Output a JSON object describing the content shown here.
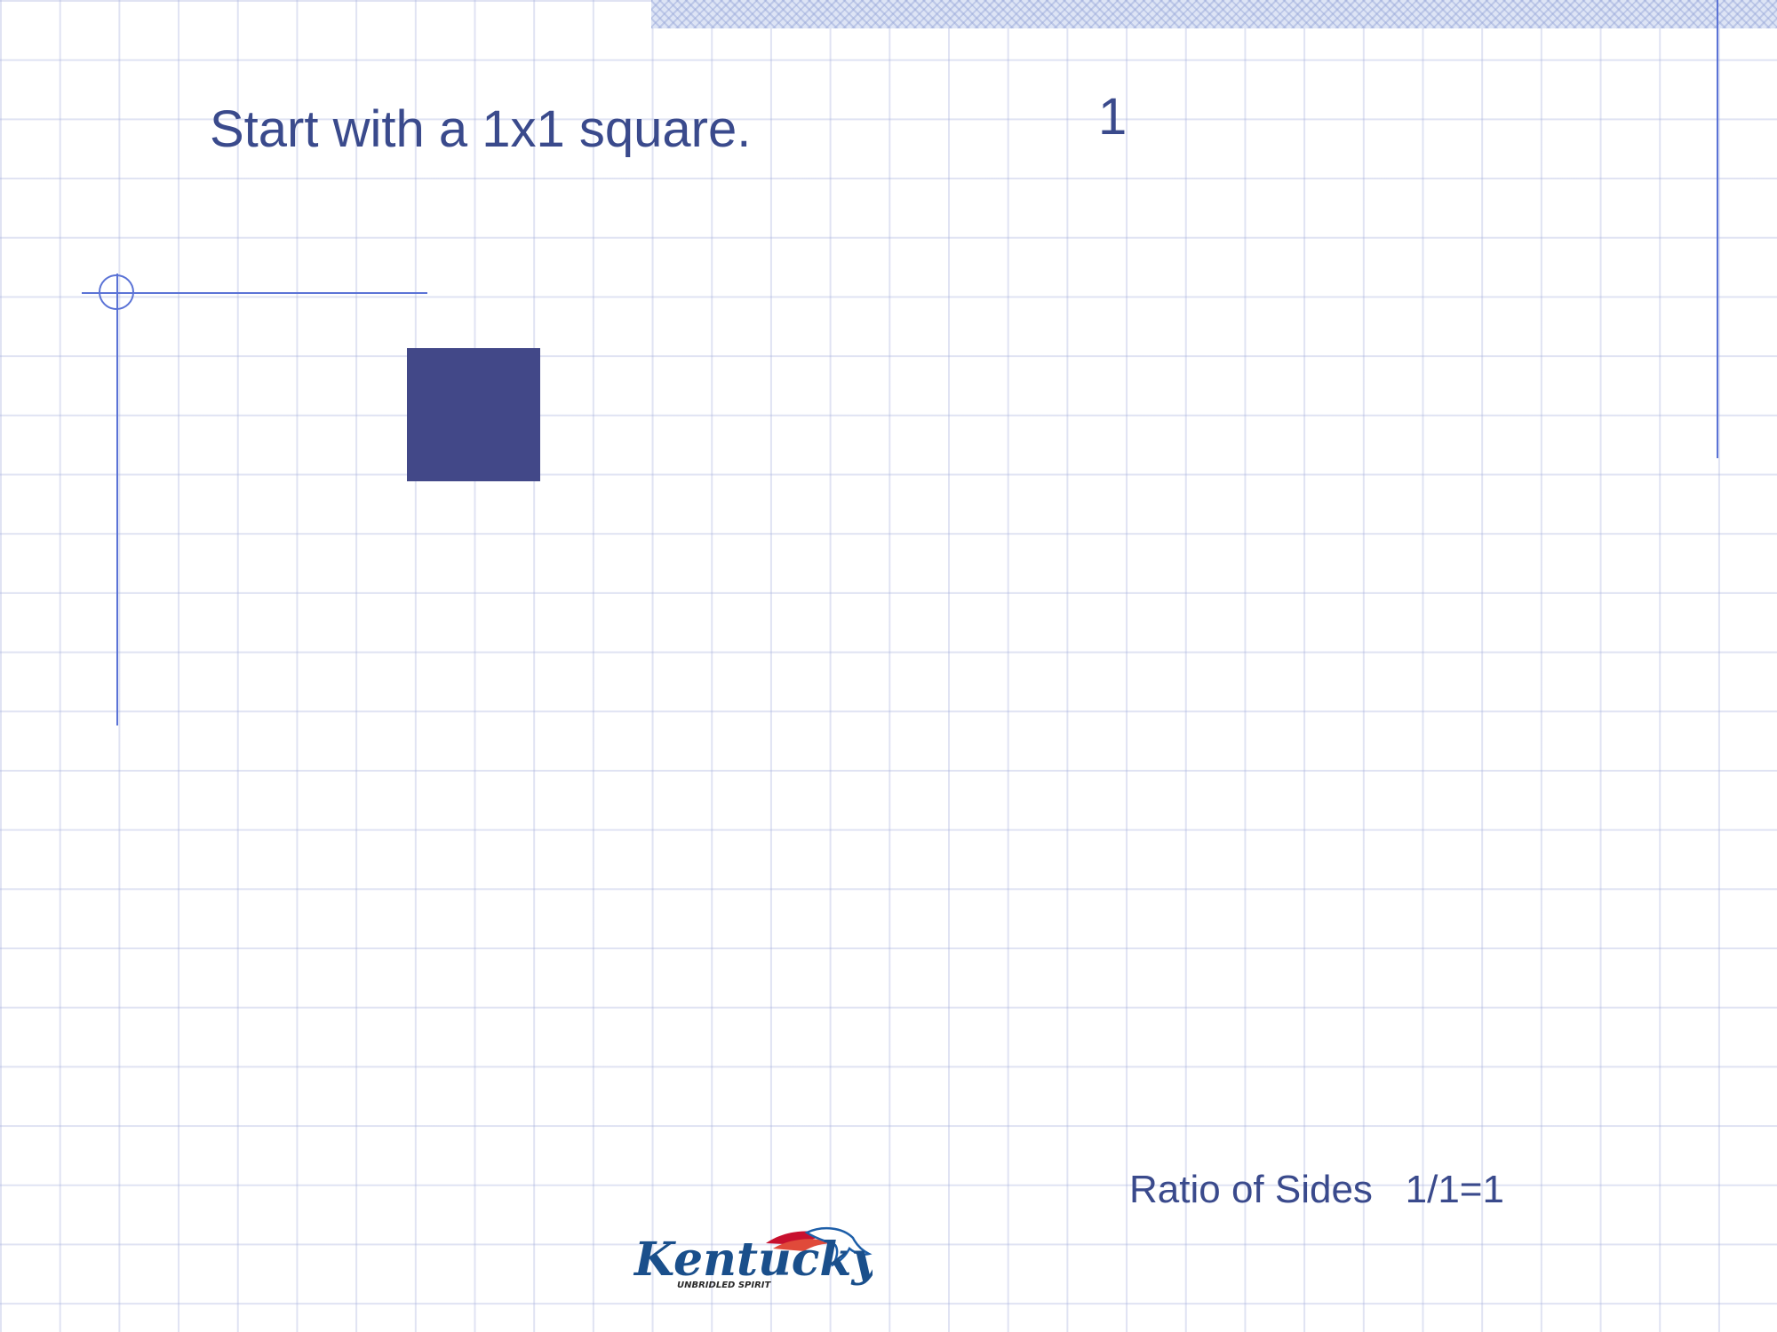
{
  "slide": {
    "title": "Start with a 1x1 square.",
    "step_number": "1",
    "ratio_label": "Ratio of Sides",
    "ratio_value": "1/1=1"
  },
  "logo": {
    "name": "kentucky-unbridled-spirit-logo",
    "wordmark": "Kentucky",
    "tagline": "UNBRIDLED SPIRIT"
  },
  "colors": {
    "text": "#3a4a8c",
    "square": "#424888",
    "rules": "#5b73d6",
    "grid": "#a5afdc"
  }
}
